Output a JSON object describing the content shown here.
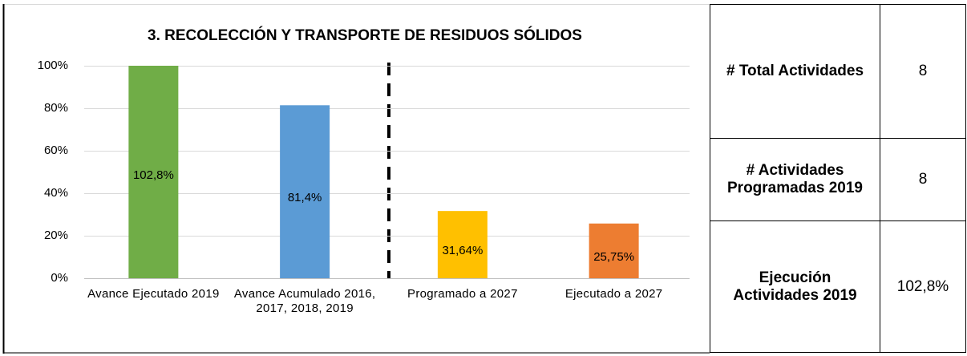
{
  "chart_data": {
    "type": "bar",
    "title": "3. RECOLECCIÓN Y TRANSPORTE DE RESIDUOS SÓLIDOS",
    "categories": [
      "Avance Ejecutado 2019",
      "Avance Acumulado 2016, 2017, 2018, 2019",
      "Programado a 2027",
      "Ejecutado a 2027"
    ],
    "values": [
      102.8,
      81.4,
      31.64,
      25.75
    ],
    "value_labels": [
      "102,8%",
      "81,4%",
      "31,64%",
      "25,75%"
    ],
    "colors": [
      "#70ad47",
      "#5b9bd5",
      "#ffc000",
      "#ed7d31"
    ],
    "ylim": [
      0,
      100
    ],
    "yticks": [
      {
        "value": 0,
        "label": "0%"
      },
      {
        "value": 20,
        "label": "20%"
      },
      {
        "value": 40,
        "label": "40%"
      },
      {
        "value": 60,
        "label": "60%"
      },
      {
        "value": 80,
        "label": "80%"
      },
      {
        "value": 100,
        "label": "100%"
      }
    ],
    "grid": true
  },
  "table": {
    "rows": [
      [
        "# Total Actividades",
        "8"
      ],
      [
        "# Actividades Programadas 2019",
        "8"
      ],
      [
        "Ejecución Actividades 2019",
        "102,8%"
      ]
    ]
  }
}
